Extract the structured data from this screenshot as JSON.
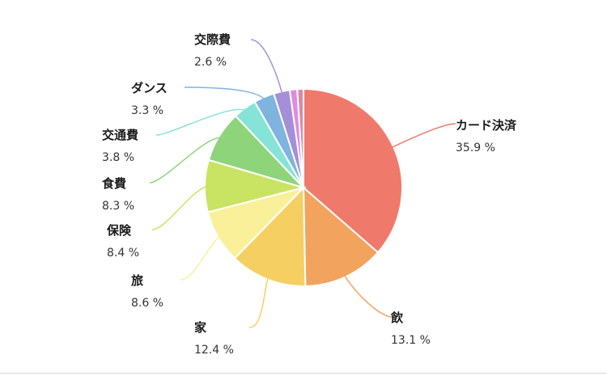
{
  "chart_data": {
    "type": "pie",
    "start_angle_deg": 0,
    "direction": "clockwise",
    "unit_suffix": " %",
    "slices": [
      {
        "label": "カード決済",
        "value": 35.9,
        "display": "35.9 %",
        "color": "#ef7a6b"
      },
      {
        "label": "飲",
        "value": 13.1,
        "display": "13.1 %",
        "color": "#f2a35e"
      },
      {
        "label": "家",
        "value": 12.4,
        "display": "12.4 %",
        "color": "#f6cf63"
      },
      {
        "label": "旅",
        "value": 8.6,
        "display": "8.6 %",
        "color": "#fbf09a"
      },
      {
        "label": "保険",
        "value": 8.4,
        "display": "8.4 %",
        "color": "#c9e363"
      },
      {
        "label": "食費",
        "value": 8.3,
        "display": "8.3 %",
        "color": "#8ed47a"
      },
      {
        "label": "交通費",
        "value": 3.8,
        "display": "3.8 %",
        "color": "#86e3d8"
      },
      {
        "label": "ダンス",
        "value": 3.3,
        "display": "3.3 %",
        "color": "#7fb3e0"
      },
      {
        "label": "交際費",
        "value": 2.6,
        "display": "2.6 %",
        "color": "#a58fd8"
      },
      {
        "label": "",
        "value": 1.2,
        "display": "",
        "color": "#e08be3"
      },
      {
        "label": "",
        "value": 1.0,
        "display": "",
        "color": "#d98aa4"
      }
    ]
  }
}
